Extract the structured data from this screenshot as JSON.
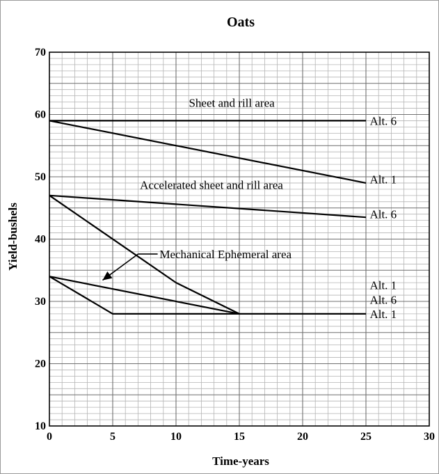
{
  "chart_data": {
    "type": "line",
    "title": "Oats",
    "xlabel": "Time-years",
    "ylabel": "Yield-bushels",
    "xlim": [
      0,
      30
    ],
    "ylim": [
      10,
      70
    ],
    "grid": true,
    "x_ticks": [
      "0",
      "5",
      "10",
      "15",
      "20",
      "25",
      "30"
    ],
    "y_ticks": [
      "10",
      "20",
      "30",
      "40",
      "50",
      "60",
      "70"
    ],
    "series": [
      {
        "points": [
          [
            0,
            59
          ],
          [
            25,
            59
          ]
        ]
      },
      {
        "points": [
          [
            0,
            59
          ],
          [
            25,
            49
          ]
        ]
      },
      {
        "points": [
          [
            0,
            47
          ],
          [
            25,
            43.5
          ]
        ]
      },
      {
        "points": [
          [
            0,
            47
          ],
          [
            10,
            33
          ],
          [
            15,
            28
          ]
        ]
      },
      {
        "points": [
          [
            0,
            34
          ],
          [
            15,
            28
          ]
        ]
      },
      {
        "points": [
          [
            0,
            34
          ],
          [
            5,
            28
          ],
          [
            25,
            28
          ]
        ]
      }
    ],
    "annotations": [
      {
        "text": "Sheet and rill area",
        "x": 14.4,
        "y": 61.9,
        "anchor": "middle"
      },
      {
        "text": "Accelerated sheet and rill area",
        "x": 12.8,
        "y": 48.7,
        "anchor": "middle"
      },
      {
        "text": "Mechanical Ephemeral area",
        "x": 8.7,
        "y": 37.6,
        "anchor": "start"
      },
      {
        "text": "Alt. 6",
        "x": 25.3,
        "y": 59,
        "anchor": "start"
      },
      {
        "text": "Alt. 1",
        "x": 25.3,
        "y": 49.6,
        "anchor": "start"
      },
      {
        "text": "Alt. 6",
        "x": 25.3,
        "y": 44,
        "anchor": "start"
      },
      {
        "text": "Alt. 1",
        "x": 25.3,
        "y": 32.6,
        "anchor": "start"
      },
      {
        "text": "Alt. 6",
        "x": 25.3,
        "y": 30.3,
        "anchor": "start"
      },
      {
        "text": "Alt. 1",
        "x": 25.3,
        "y": 28,
        "anchor": "start"
      }
    ]
  }
}
